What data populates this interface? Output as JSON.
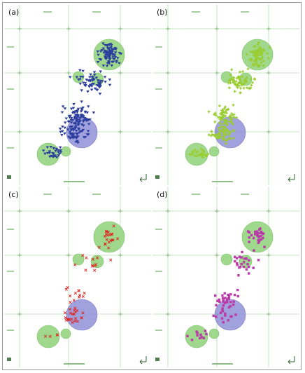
{
  "figure": {
    "panel_labels": [
      "(a)",
      "(b)",
      "(c)",
      "(d)"
    ],
    "colors": {
      "green_circle": "#8fd27a",
      "blue_circle": "#9191d8",
      "grid": "#b7ddb0",
      "marker_a": "#2c3f9e",
      "marker_b": "#9acd32",
      "marker_c": "#e0201c",
      "marker_d": "#b93aa8"
    },
    "marker_styles": {
      "a": "down-triangle",
      "b": "plus",
      "c": "cross-star",
      "d": "square"
    },
    "compass_icon": "north-arrow-icon"
  }
}
